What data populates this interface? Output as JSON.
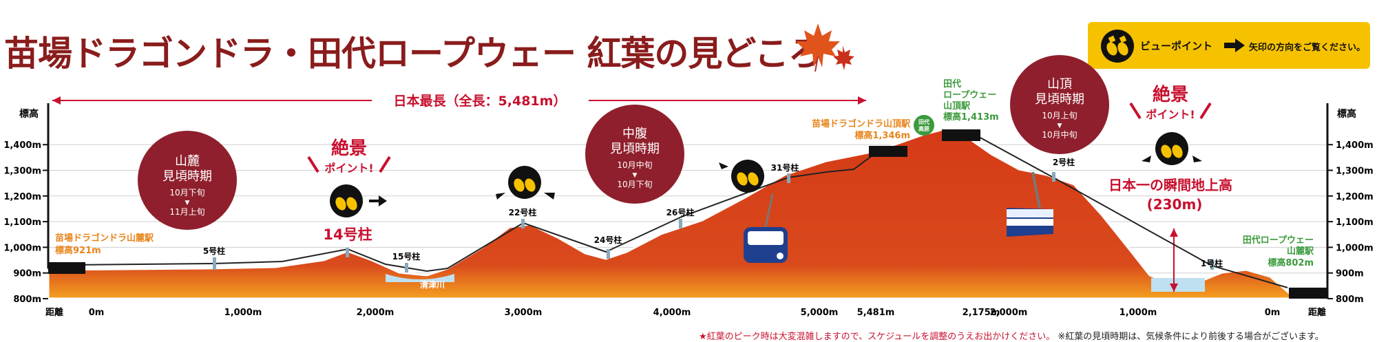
{
  "title": "苗場ドラゴンドラ・田代ロープウェー 紅葉の見どころ",
  "legend": {
    "view_point": "ビューポイント",
    "arrow_note": "矢印の方向をご覧ください。"
  },
  "length_banner": "日本最長（全長：5,481m）",
  "y_axis": {
    "label": "標高",
    "ticks": [
      "1,400m",
      "1,300m",
      "1,200m",
      "1,100m",
      "1,000m",
      "900m",
      "800m"
    ],
    "tick_values": [
      1400,
      1300,
      1200,
      1100,
      1000,
      900,
      800
    ]
  },
  "x_axis": {
    "label": "距離",
    "dragondola_ticks": [
      "0m",
      "1,000m",
      "2,000m",
      "3,000m",
      "4,000m",
      "5,000m",
      "5,481m"
    ],
    "ropeway_ticks": [
      "2,175m",
      "2,000m",
      "1,000m",
      "0m"
    ]
  },
  "stations": {
    "dragondola_base": {
      "name": "苗場ドラゴンドラ山麓駅",
      "elev": "標高921m",
      "elev_m": 921
    },
    "dragondola_top": {
      "name": "苗場ドラゴンドラ山頂駅",
      "elev": "標高1,346m",
      "elev_m": 1346
    },
    "ropeway_top": {
      "line1": "田代",
      "line2": "ロープウェー",
      "line3": "山頂駅",
      "elev": "標高1,413m",
      "elev_m": 1413
    },
    "ropeway_base": {
      "line1": "田代ロープウェー",
      "line2": "山麓駅",
      "elev": "標高802m",
      "elev_m": 802
    },
    "badge": {
      "line1": "田代",
      "line2": "高原"
    }
  },
  "towers": [
    "5号柱",
    "14号柱",
    "15号柱",
    "22号柱",
    "24号柱",
    "26号柱",
    "31号柱",
    "2号柱",
    "1号柱"
  ],
  "river": "清津川",
  "viewing": {
    "foot": {
      "line1": "山麓",
      "line2": "見頃時期",
      "d1": "10月下旬",
      "sep": "▼",
      "d2": "11月上旬"
    },
    "middle": {
      "line1": "中腹",
      "line2": "見頃時期",
      "d1": "10月中旬",
      "sep": "▼",
      "d2": "10月下旬"
    },
    "summit": {
      "line1": "山頂",
      "line2": "見頃時期",
      "d1": "10月上旬",
      "sep": "▼",
      "d2": "10月中旬"
    }
  },
  "zekkei_1": {
    "line1": "絶景",
    "line2": "ポイント!",
    "sub": "14号柱"
  },
  "zekkei_2": {
    "line1": "絶景",
    "line2": "ポイント!",
    "sub1": "日本一の瞬間地上高",
    "sub2": "(230m)"
  },
  "footnote": {
    "red": "★紅葉のピーク時は大変混雑しますので、スケジュールを調整のうえお出かけください。",
    "black": "※紅葉の見頃時期は、気候条件により前後する場合がございます。"
  },
  "colors": {
    "title": "#8a1c1c",
    "accent_red": "#c8102e",
    "mountain": "#d43a1a",
    "legend_bg": "#f6c200",
    "station_orange": "#e8841b",
    "station_green": "#3c9a3c"
  }
}
